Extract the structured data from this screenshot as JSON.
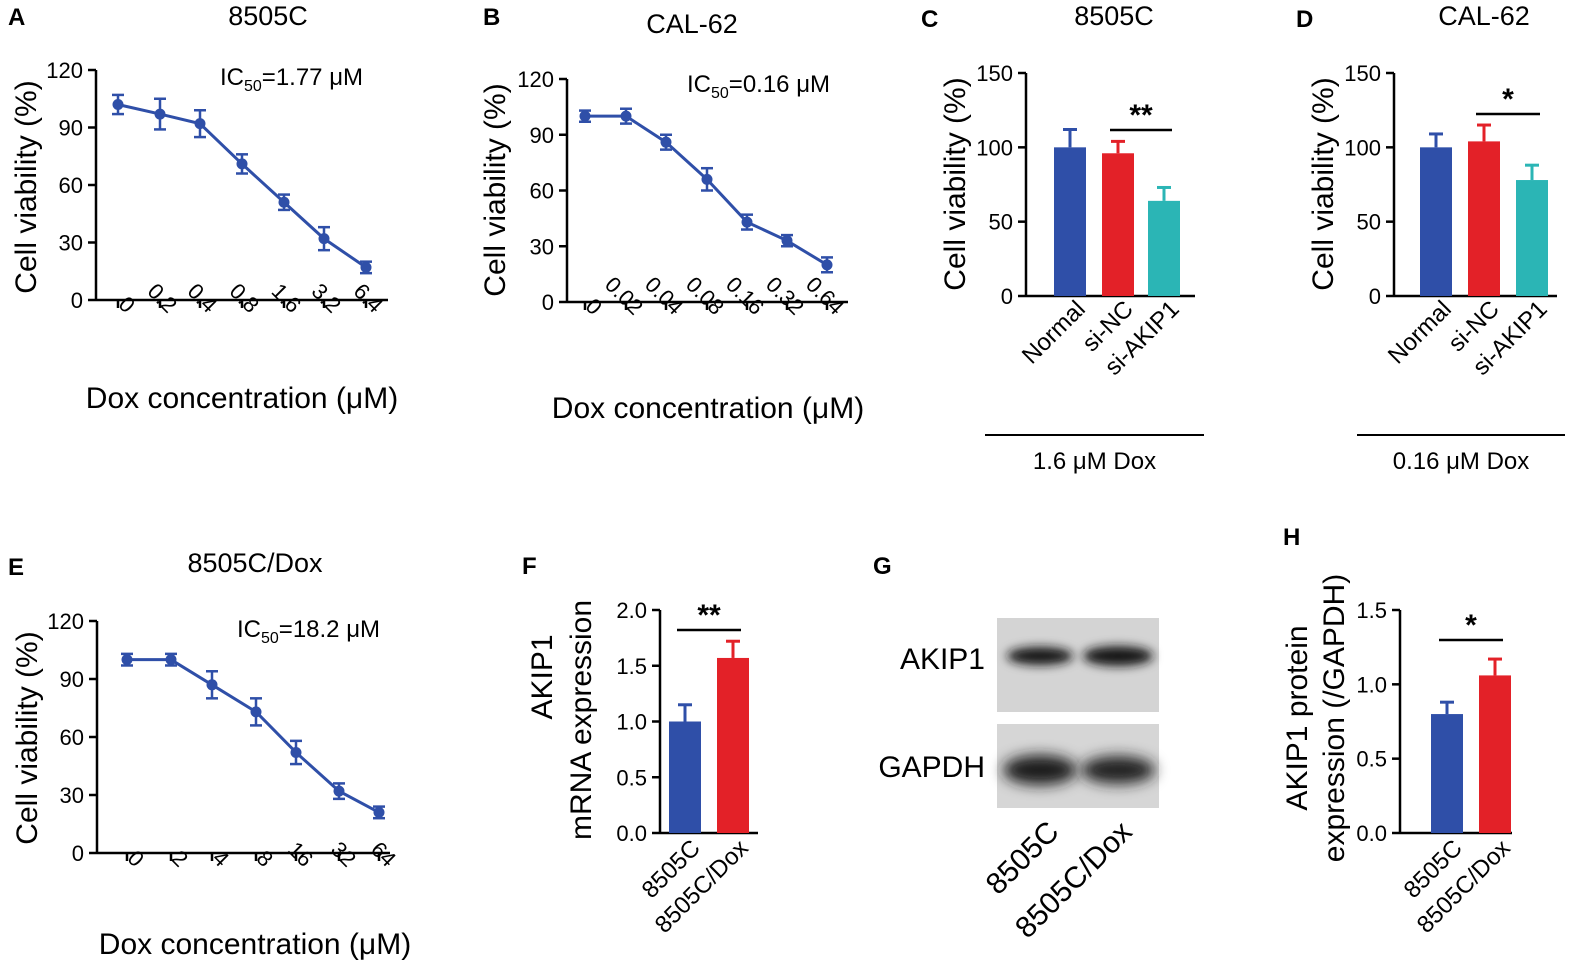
{
  "figure": {
    "blot": {
      "label": "G",
      "rows": [
        "AKIP1",
        "GAPDH"
      ],
      "lanes": [
        "8505C",
        "8505C/Dox"
      ]
    }
  },
  "colors": {
    "line": "#2f4fa8",
    "normal": "#2f4fa8",
    "sinc": "#e32128",
    "siakip1": "#2bb5b5",
    "dox": "#e32128"
  },
  "chart_data": [
    {
      "panel": "A",
      "type": "line",
      "title": "8505C",
      "xlabel": "Dox concentration (μM)",
      "ylabel": "Cell viability (%)",
      "categories": [
        "0",
        "0.2",
        "0.4",
        "0.8",
        "1.6",
        "3.2",
        "6.4"
      ],
      "values": [
        102,
        97,
        92,
        71,
        51,
        32,
        17
      ],
      "errors": [
        5,
        8,
        7,
        5,
        4,
        6,
        3
      ],
      "ylim": [
        0,
        120
      ],
      "yticks": [
        0,
        30,
        60,
        90,
        120
      ],
      "ic50": {
        "pre": "IC",
        "sub": "50",
        "post": "=1.77 μM"
      }
    },
    {
      "panel": "B",
      "type": "line",
      "title": "CAL-62",
      "xlabel": "Dox concentration (μM)",
      "ylabel": "Cell viability (%)",
      "categories": [
        "0",
        "0.02",
        "0.04",
        "0.08",
        "0.16",
        "0.32",
        "0.64"
      ],
      "values": [
        100,
        100,
        86,
        66,
        43,
        33,
        20
      ],
      "errors": [
        3,
        4,
        4,
        6,
        4,
        3,
        4
      ],
      "ylim": [
        0,
        120
      ],
      "yticks": [
        0,
        30,
        60,
        90,
        120
      ],
      "ic50": {
        "pre": "IC",
        "sub": "50",
        "post": "=0.16 μM"
      }
    },
    {
      "panel": "C",
      "type": "bar",
      "title": "8505C",
      "ylabel": "Cell viability (%)",
      "categories": [
        "Normal",
        "si-NC",
        "si-AKIP1"
      ],
      "values": [
        100,
        96,
        64
      ],
      "errors": [
        12,
        8,
        9
      ],
      "ylim": [
        0,
        150
      ],
      "yticks": [
        0,
        50,
        100,
        150
      ],
      "group_label": "1.6 μM Dox",
      "significance": {
        "between": [
          1,
          2
        ],
        "label": "**"
      }
    },
    {
      "panel": "D",
      "type": "bar",
      "title": "CAL-62",
      "ylabel": "Cell viability (%)",
      "categories": [
        "Normal",
        "si-NC",
        "si-AKIP1"
      ],
      "values": [
        100,
        104,
        78
      ],
      "errors": [
        9,
        11,
        10
      ],
      "ylim": [
        0,
        150
      ],
      "yticks": [
        0,
        50,
        100,
        150
      ],
      "group_label": "0.16 μM Dox",
      "significance": {
        "between": [
          1,
          2
        ],
        "label": "*"
      }
    },
    {
      "panel": "E",
      "type": "line",
      "title": "8505C/Dox",
      "xlabel": "Dox concentration (μM)",
      "ylabel": "Cell viability (%)",
      "categories": [
        "0",
        "2",
        "4",
        "8",
        "16",
        "32",
        "64"
      ],
      "values": [
        100,
        100,
        87,
        73,
        52,
        32,
        21
      ],
      "errors": [
        3,
        3,
        7,
        7,
        6,
        4,
        3
      ],
      "ylim": [
        0,
        120
      ],
      "yticks": [
        0,
        30,
        60,
        90,
        120
      ],
      "ic50": {
        "pre": "IC",
        "sub": "50",
        "post": "=18.2 μM"
      }
    },
    {
      "panel": "F",
      "type": "bar",
      "title": "",
      "ylabel": [
        "AKIP1",
        "mRNA expression"
      ],
      "categories": [
        "8505C",
        "8505C/Dox"
      ],
      "values": [
        1.0,
        1.57
      ],
      "errors": [
        0.15,
        0.15
      ],
      "ylim": [
        0,
        2.0
      ],
      "yticks": [
        "0.0",
        "0.5",
        "1.0",
        "1.5",
        "2.0"
      ],
      "significance": {
        "between": [
          0,
          1
        ],
        "label": "**"
      }
    },
    {
      "panel": "H",
      "type": "bar",
      "title": "",
      "ylabel": [
        "AKIP1 protein",
        "expression (/GAPDH)"
      ],
      "categories": [
        "8505C",
        "8505C/Dox"
      ],
      "values": [
        0.8,
        1.06
      ],
      "errors": [
        0.08,
        0.11
      ],
      "ylim": [
        0,
        1.5
      ],
      "yticks": [
        "0.0",
        "0.5",
        "1.0",
        "1.5"
      ],
      "significance": {
        "between": [
          0,
          1
        ],
        "label": "*"
      }
    }
  ]
}
